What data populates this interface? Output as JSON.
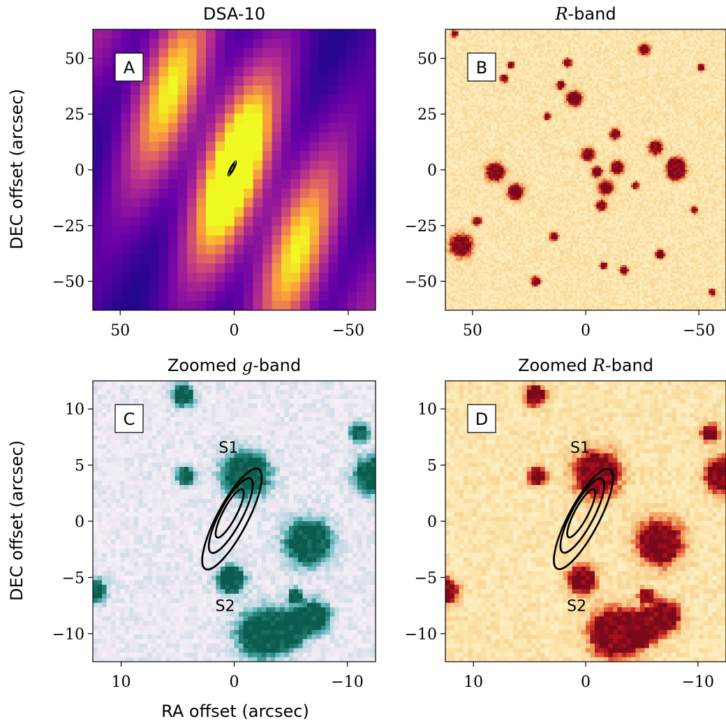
{
  "figure": {
    "ylabel": "DEC offset (arcsec)",
    "xlabel": "RA offset (arcsec)"
  },
  "colors": {
    "plasma_low": "#0d0887",
    "plasma_mid": "#b12a90",
    "plasma_orange": "#fca636",
    "plasma_high": "#f0f921",
    "ylorrd_bg": "#fbe3a8",
    "ylorrd_source": "#7a0a1a",
    "bugn_bg": "#eee8f2",
    "bugn_source": "#0b5c4f"
  },
  "chart_data": [
    {
      "panel": "A",
      "type": "heatmap",
      "title_parts": [
        "DSA-10",
        ""
      ],
      "title_math": false,
      "x_ticks": [
        "50",
        "0",
        "−50"
      ],
      "y_ticks": [
        "50",
        "25",
        "0",
        "−25",
        "−50"
      ],
      "x_tick_values": [
        50,
        0,
        -50
      ],
      "y_tick_values": [
        50,
        25,
        0,
        -25,
        -50
      ],
      "xlim": [
        62,
        -62
      ],
      "ylim": [
        -63,
        63
      ],
      "colormap": "plasma",
      "x_inverted": true,
      "contours": [
        {
          "center": [
            0.9,
            0.6
          ],
          "semi_major": 3.7,
          "semi_minor": 0.9,
          "angle_deg": 62
        },
        {
          "center": [
            0.9,
            0.6
          ],
          "semi_major": 2.8,
          "semi_minor": 0.6,
          "angle_deg": 62
        },
        {
          "center": [
            0.9,
            0.6
          ],
          "semi_major": 1.9,
          "semi_minor": 0.35,
          "angle_deg": 62
        }
      ]
    },
    {
      "panel": "B",
      "type": "heatmap",
      "title_parts": [
        "R",
        "-band"
      ],
      "title_math": true,
      "x_ticks": [
        "50",
        "0",
        "−50"
      ],
      "y_ticks": [
        "50",
        "25",
        "0",
        "−25",
        "−50"
      ],
      "x_tick_values": [
        50,
        0,
        -50
      ],
      "y_tick_values": [
        50,
        25,
        0,
        -25,
        -50
      ],
      "xlim": [
        62,
        -62
      ],
      "ylim": [
        -63,
        63
      ],
      "colormap": "YlOrRd"
    },
    {
      "panel": "C",
      "type": "heatmap",
      "title_parts": [
        "Zoomed ",
        "g",
        "-band"
      ],
      "title_math": true,
      "x_ticks": [
        "10",
        "0",
        "−10"
      ],
      "y_ticks": [
        "10",
        "5",
        "0",
        "−5",
        "−10"
      ],
      "x_tick_values": [
        10,
        0,
        -10
      ],
      "y_tick_values": [
        10,
        5,
        0,
        -5,
        -10
      ],
      "xlim": [
        12.5,
        -12.5
      ],
      "ylim": [
        -12.5,
        12.5
      ],
      "colormap": "BuGn",
      "sources": [
        {
          "name": "S1",
          "label_pos": [
            0.5,
            6.1
          ]
        },
        {
          "name": "S2",
          "label_pos": [
            0.8,
            -8.0
          ]
        }
      ],
      "contours": [
        {
          "center": [
            0.2,
            0.2
          ],
          "semi_major": 5.0,
          "semi_minor": 1.35,
          "angle_deg": 62
        },
        {
          "center": [
            0.3,
            0.5
          ],
          "semi_major": 3.7,
          "semi_minor": 1.0,
          "angle_deg": 62
        },
        {
          "center": [
            0.4,
            0.7
          ],
          "semi_major": 2.4,
          "semi_minor": 0.6,
          "angle_deg": 62
        }
      ]
    },
    {
      "panel": "D",
      "type": "heatmap",
      "title_parts": [
        "Zoomed ",
        "R",
        "-band"
      ],
      "title_math": true,
      "x_ticks": [
        "10",
        "0",
        "−10"
      ],
      "y_ticks": [
        "10",
        "5",
        "0",
        "−5",
        "−10"
      ],
      "x_tick_values": [
        10,
        0,
        -10
      ],
      "y_tick_values": [
        10,
        5,
        0,
        -5,
        -10
      ],
      "xlim": [
        12.5,
        -12.5
      ],
      "ylim": [
        -12.5,
        12.5
      ],
      "colormap": "YlOrRd",
      "sources": [
        {
          "name": "S1",
          "label_pos": [
            0.5,
            6.1
          ]
        },
        {
          "name": "S2",
          "label_pos": [
            0.8,
            -8.0
          ]
        }
      ],
      "contours": [
        {
          "center": [
            0.2,
            0.2
          ],
          "semi_major": 5.0,
          "semi_minor": 1.35,
          "angle_deg": 62
        },
        {
          "center": [
            0.3,
            0.5
          ],
          "semi_major": 3.7,
          "semi_minor": 1.0,
          "angle_deg": 62
        },
        {
          "center": [
            0.4,
            0.7
          ],
          "semi_major": 2.4,
          "semi_minor": 0.6,
          "angle_deg": 62
        }
      ]
    }
  ]
}
